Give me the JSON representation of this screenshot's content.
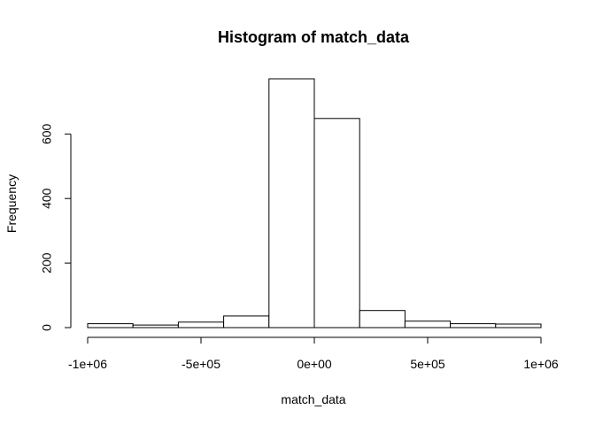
{
  "chart_data": {
    "type": "bar",
    "title": "Histogram of match_data",
    "xlabel": "match_data",
    "ylabel": "Frequency",
    "bins": [
      {
        "from": -1000000,
        "to": -800000,
        "count": 12
      },
      {
        "from": -800000,
        "to": -600000,
        "count": 8
      },
      {
        "from": -600000,
        "to": -400000,
        "count": 17
      },
      {
        "from": -400000,
        "to": -200000,
        "count": 36
      },
      {
        "from": -200000,
        "to": 0,
        "count": 771
      },
      {
        "from": 0,
        "to": 200000,
        "count": 648
      },
      {
        "from": 200000,
        "to": 400000,
        "count": 53
      },
      {
        "from": 400000,
        "to": 600000,
        "count": 20
      },
      {
        "from": 600000,
        "to": 800000,
        "count": 12
      },
      {
        "from": 800000,
        "to": 1000000,
        "count": 11
      }
    ],
    "xlim": [
      -1000000,
      1000000
    ],
    "ylim": [
      0,
      771
    ],
    "x_ticks": [
      -1000000,
      -500000,
      0,
      500000,
      1000000
    ],
    "x_tick_labels": [
      "-1e+06",
      "-5e+05",
      "0e+00",
      "5e+05",
      "1e+06"
    ],
    "y_ticks": [
      0,
      200,
      400,
      600
    ],
    "y_tick_labels": [
      "0",
      "200",
      "400",
      "600"
    ],
    "grid": false,
    "bar_fill": "#ffffff",
    "bar_stroke": "#000000"
  }
}
